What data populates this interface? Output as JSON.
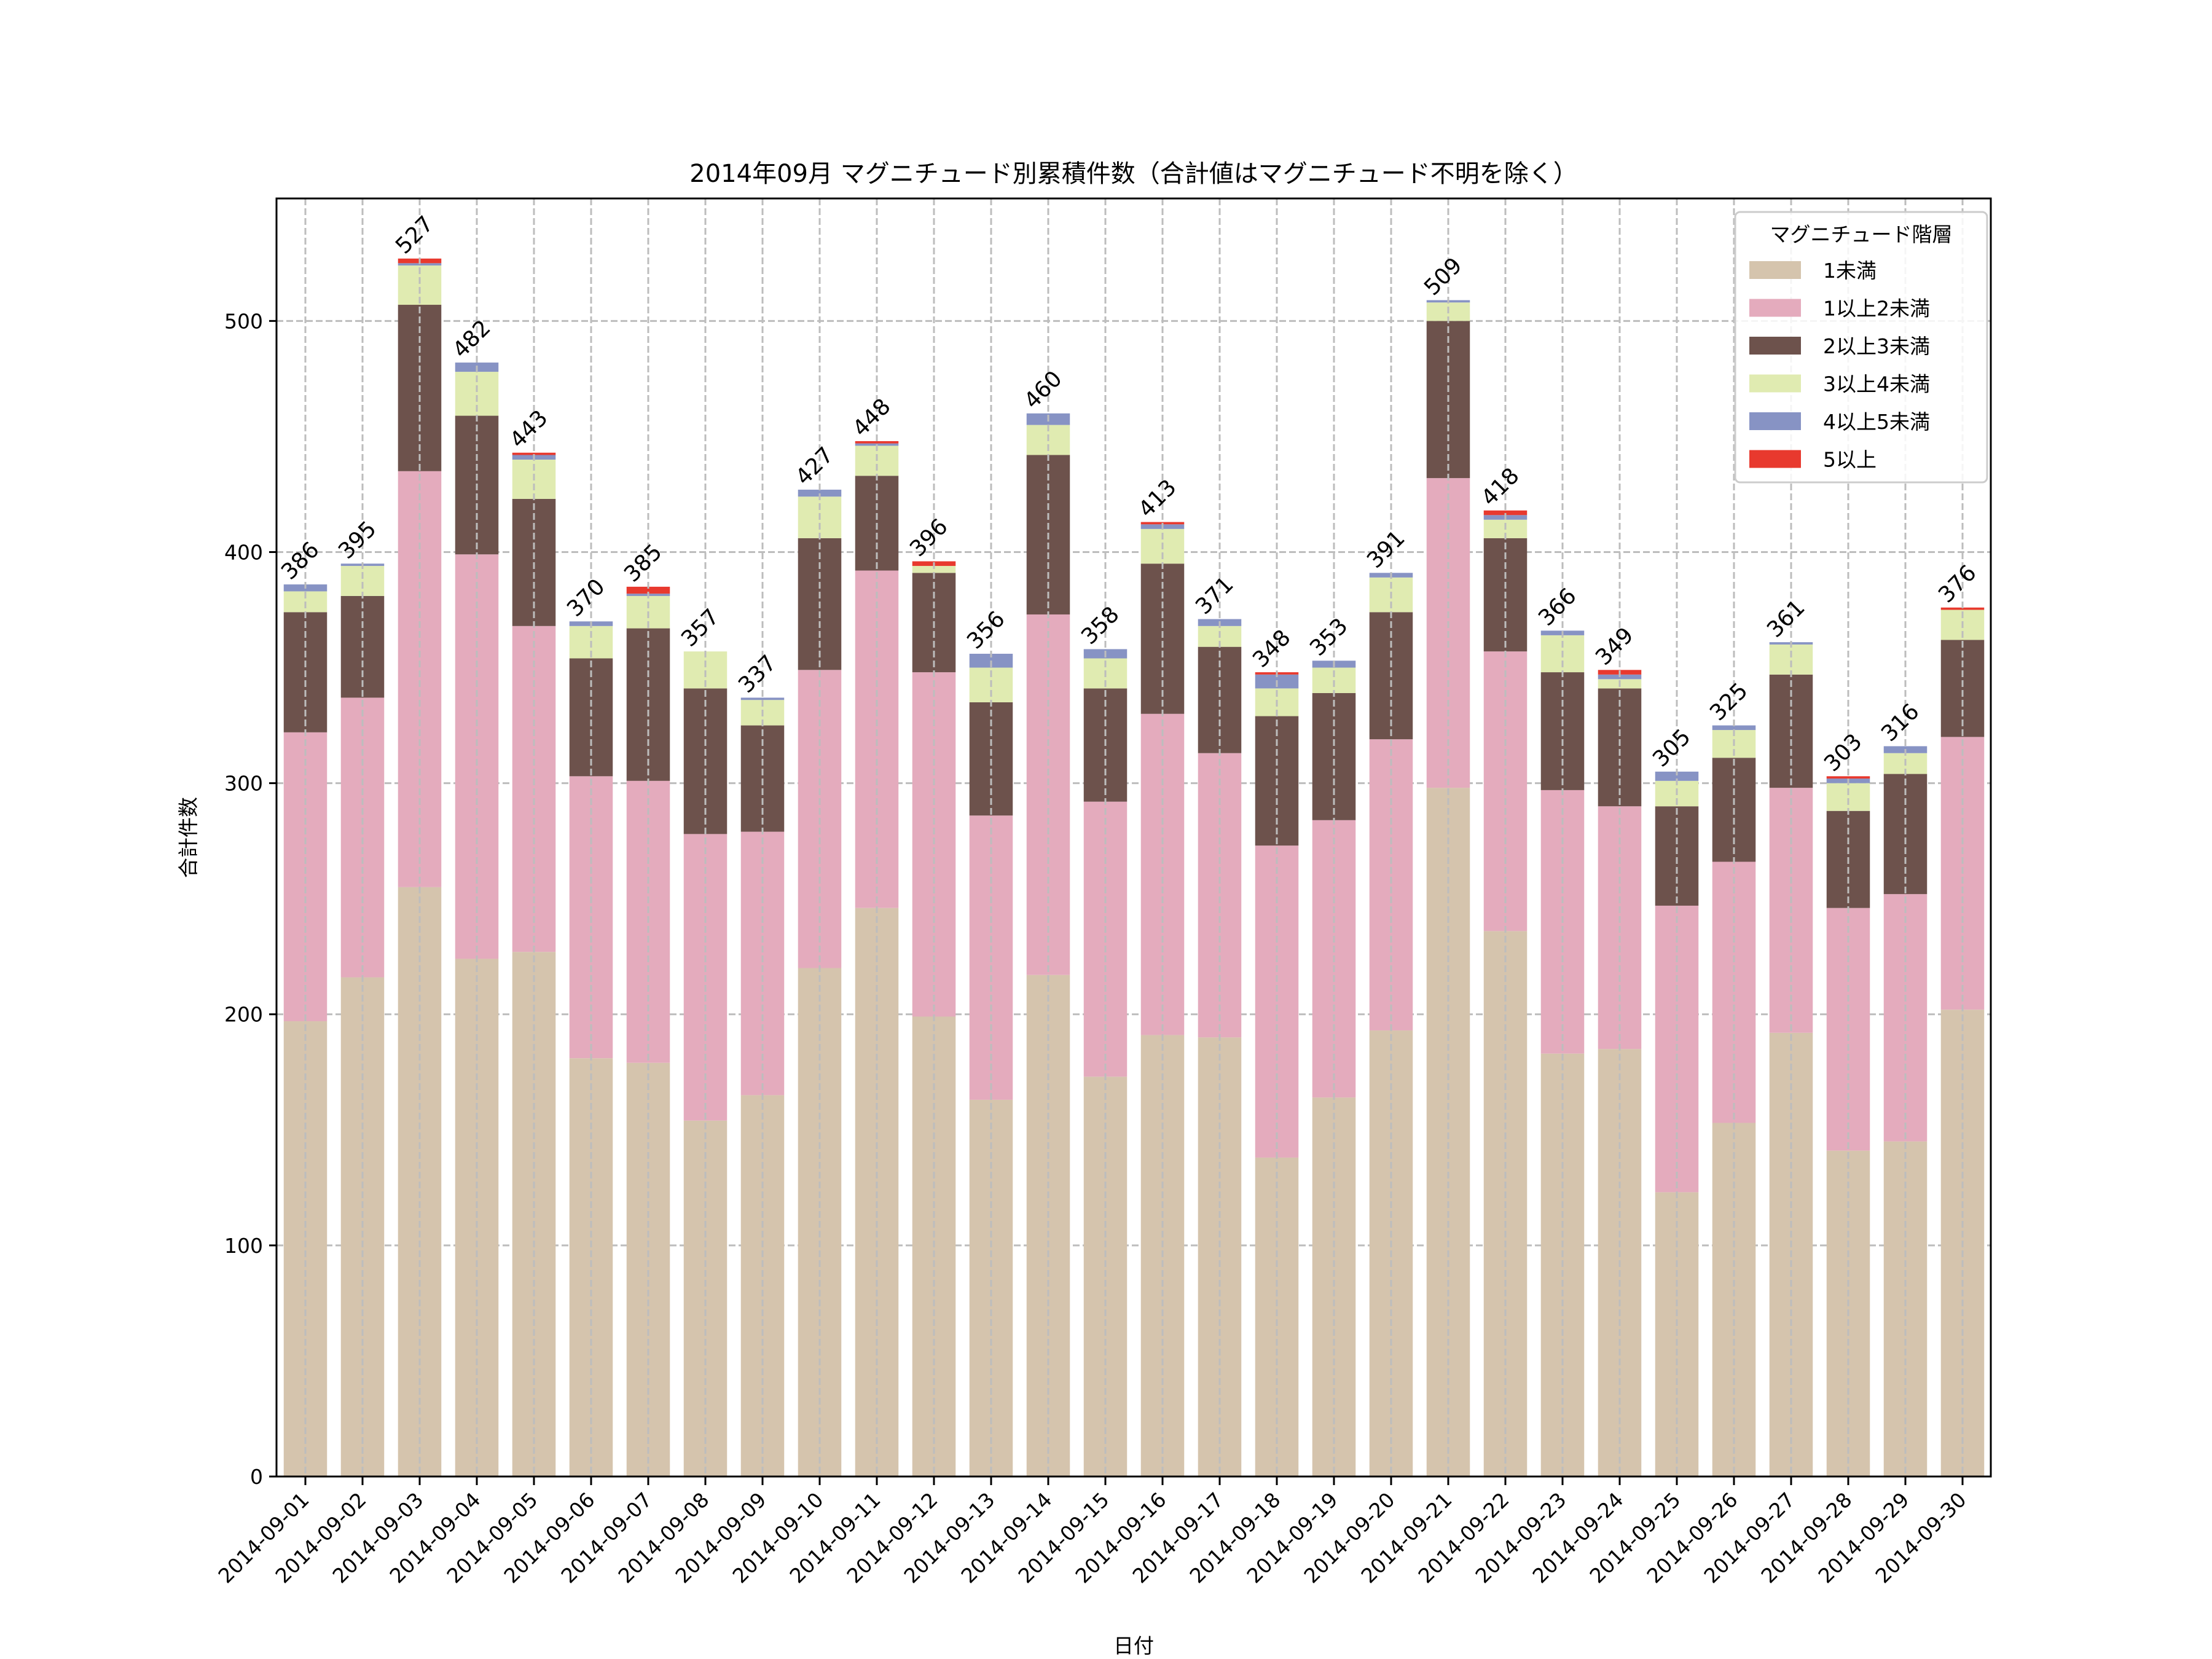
{
  "chart_data": {
    "type": "bar",
    "stacked": true,
    "title": "2014年09月 マグニチュード別累積件数（合計値はマグニチュード不明を除く）",
    "xlabel": "日付",
    "ylabel": "合計件数",
    "ylim": [
      0,
      553
    ],
    "yticks": [
      0,
      100,
      200,
      300,
      400,
      500
    ],
    "grid": true,
    "legend": {
      "title": "マグニチュード階層",
      "position": "top-right"
    },
    "categories": [
      "2014-09-01",
      "2014-09-02",
      "2014-09-03",
      "2014-09-04",
      "2014-09-05",
      "2014-09-06",
      "2014-09-07",
      "2014-09-08",
      "2014-09-09",
      "2014-09-10",
      "2014-09-11",
      "2014-09-12",
      "2014-09-13",
      "2014-09-14",
      "2014-09-15",
      "2014-09-16",
      "2014-09-17",
      "2014-09-18",
      "2014-09-19",
      "2014-09-20",
      "2014-09-21",
      "2014-09-22",
      "2014-09-23",
      "2014-09-24",
      "2014-09-25",
      "2014-09-26",
      "2014-09-27",
      "2014-09-28",
      "2014-09-29",
      "2014-09-30"
    ],
    "series": [
      {
        "name": "1未満",
        "color": "#d5c4ad",
        "values": [
          197,
          216,
          255,
          224,
          227,
          181,
          179,
          154,
          165,
          220,
          246,
          199,
          163,
          217,
          173,
          191,
          190,
          138,
          164,
          193,
          298,
          236,
          183,
          185,
          123,
          153,
          192,
          141,
          145,
          202
        ]
      },
      {
        "name": "1以上2未満",
        "color": "#e4abbd",
        "values": [
          125,
          121,
          180,
          175,
          141,
          122,
          122,
          124,
          114,
          129,
          146,
          149,
          123,
          156,
          119,
          139,
          123,
          135,
          120,
          126,
          134,
          121,
          114,
          105,
          124,
          113,
          106,
          105,
          107,
          118
        ]
      },
      {
        "name": "2以上3未満",
        "color": "#6d524c",
        "values": [
          52,
          44,
          72,
          60,
          55,
          51,
          66,
          63,
          46,
          57,
          41,
          43,
          49,
          69,
          49,
          65,
          46,
          56,
          55,
          55,
          68,
          49,
          51,
          51,
          43,
          45,
          49,
          42,
          52,
          42
        ]
      },
      {
        "name": "3以上4未満",
        "color": "#e0ebb1",
        "values": [
          9,
          13,
          17,
          19,
          17,
          14,
          14,
          16,
          11,
          18,
          13,
          3,
          15,
          13,
          13,
          15,
          9,
          12,
          11,
          15,
          8,
          8,
          16,
          4,
          11,
          12,
          13,
          12,
          9,
          13
        ]
      },
      {
        "name": "4以上5未満",
        "color": "#8793c4",
        "values": [
          3,
          1,
          1,
          4,
          2,
          2,
          1,
          0,
          1,
          3,
          1,
          0,
          6,
          5,
          4,
          2,
          3,
          6,
          3,
          2,
          1,
          2,
          2,
          2,
          4,
          2,
          1,
          2,
          3,
          0
        ]
      },
      {
        "name": "5以上",
        "color": "#e8392e",
        "values": [
          0,
          0,
          2,
          0,
          1,
          0,
          3,
          0,
          0,
          0,
          1,
          2,
          0,
          0,
          0,
          1,
          0,
          1,
          0,
          0,
          0,
          2,
          0,
          2,
          0,
          0,
          0,
          1,
          0,
          1
        ]
      }
    ],
    "totals": [
      386,
      395,
      527,
      482,
      443,
      370,
      385,
      357,
      337,
      427,
      448,
      396,
      356,
      460,
      358,
      413,
      371,
      348,
      353,
      391,
      509,
      418,
      366,
      349,
      305,
      325,
      361,
      303,
      316,
      376
    ]
  }
}
